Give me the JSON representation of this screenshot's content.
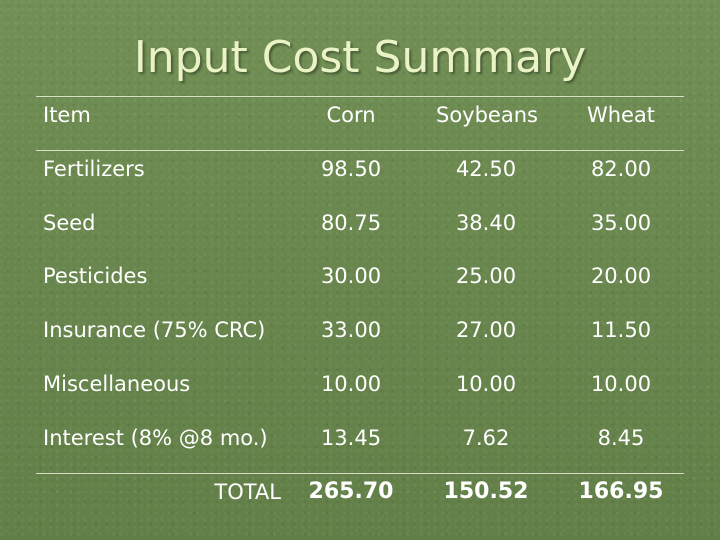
{
  "title": "Input Cost Summary",
  "table": {
    "headers": {
      "item": "Item",
      "corn": "Corn",
      "soybeans": "Soybeans",
      "wheat": "Wheat"
    },
    "rows": [
      {
        "item": "Fertilizers",
        "corn": "98.50",
        "soybeans": "42.50",
        "wheat": "82.00"
      },
      {
        "item": "Seed",
        "corn": "80.75",
        "soybeans": "38.40",
        "wheat": "35.00"
      },
      {
        "item": "Pesticides",
        "corn": "30.00",
        "soybeans": "25.00",
        "wheat": "20.00"
      },
      {
        "item": "Insurance (75% CRC)",
        "corn": "33.00",
        "soybeans": "27.00",
        "wheat": "11.50"
      },
      {
        "item": "Miscellaneous",
        "corn": "10.00",
        "soybeans": "10.00",
        "wheat": "10.00"
      },
      {
        "item": "Interest (8% @8 mo.)",
        "corn": "13.45",
        "soybeans": "7.62",
        "wheat": "8.45"
      }
    ],
    "total": {
      "label": "TOTAL",
      "corn": "265.70",
      "soybeans": "150.52",
      "wheat": "166.95"
    }
  }
}
